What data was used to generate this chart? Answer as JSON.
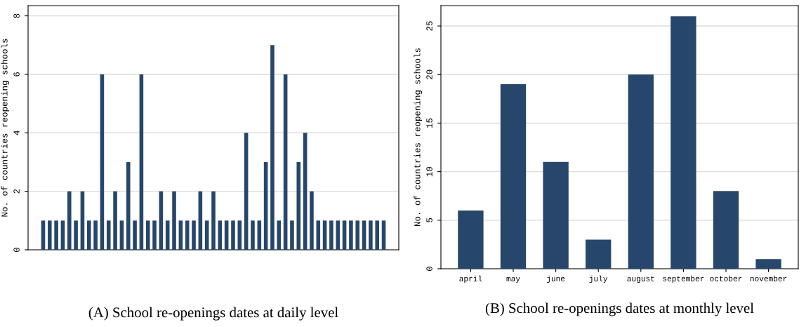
{
  "chart_data": [
    {
      "type": "bar",
      "title": "(A) School re-openings dates at daily level",
      "ylabel": "No. of countries reopening schools",
      "categories": [
        null,
        null,
        null,
        null,
        null,
        null,
        null,
        null,
        null,
        null,
        null,
        null,
        null,
        null,
        null,
        null,
        null,
        null,
        null,
        null,
        null,
        null,
        null,
        null,
        null,
        null,
        null,
        null,
        null,
        null,
        null,
        null,
        null,
        null,
        null,
        null,
        null,
        null,
        null,
        null,
        null,
        null,
        null,
        null,
        null,
        null,
        null,
        null,
        null,
        null,
        null,
        null,
        null
      ],
      "values": [
        1,
        1,
        1,
        1,
        2,
        1,
        2,
        1,
        1,
        6,
        1,
        2,
        1,
        3,
        1,
        6,
        1,
        1,
        2,
        1,
        2,
        1,
        1,
        1,
        2,
        1,
        2,
        1,
        1,
        1,
        1,
        4,
        1,
        1,
        3,
        7,
        1,
        6,
        1,
        3,
        4,
        2,
        1,
        1,
        1,
        1,
        1,
        1,
        1,
        1,
        1,
        1,
        1
      ],
      "color": "#27466b",
      "ylim": [
        0,
        8.35
      ],
      "yticks": [
        0,
        2,
        4,
        6,
        8
      ],
      "grid": "y",
      "legend": false
    },
    {
      "type": "bar",
      "title": "(B) School re-openings dates at monthly level",
      "ylabel": "No. of countries reopening schools",
      "categories": [
        "april",
        "may",
        "june",
        "july",
        "august",
        "september",
        "october",
        "november"
      ],
      "values": [
        6,
        19,
        11,
        3,
        20,
        26,
        8,
        1
      ],
      "color": "#27466b",
      "ylim": [
        0,
        27.1
      ],
      "yticks": [
        0,
        5,
        10,
        15,
        20,
        25
      ],
      "grid": "y",
      "legend": false
    }
  ]
}
